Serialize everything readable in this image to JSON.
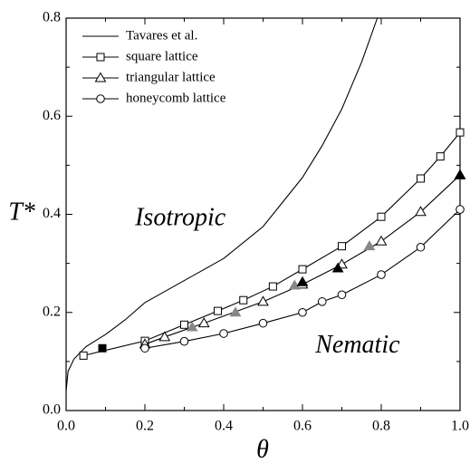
{
  "chart_data": {
    "type": "line",
    "xlabel": "θ",
    "ylabel": "T*",
    "xlim": [
      0,
      1
    ],
    "ylim": [
      0,
      0.8
    ],
    "xticks": [
      {
        "value": 0,
        "label": "0.0"
      },
      0.2,
      0.4,
      0.6,
      0.8,
      {
        "value": 1,
        "label": "1.0"
      }
    ],
    "yticks": [
      {
        "value": 0,
        "label": "0.0"
      },
      0.2,
      0.4,
      0.6,
      0.8
    ],
    "legend": "upper left",
    "annotations": [
      {
        "text": "Isotropic",
        "x": 0.29,
        "y": 0.39
      },
      {
        "text": "Nematic",
        "x": 0.74,
        "y": 0.13
      }
    ],
    "series": [
      {
        "name": "Tavares et al.",
        "color": "#000000",
        "marker": "none",
        "x": [
          0,
          0.005,
          0.02,
          0.05,
          0.1,
          0.15,
          0.2,
          0.3,
          0.4,
          0.5,
          0.6,
          0.65,
          0.7,
          0.75,
          0.79
        ],
        "values": [
          0.04,
          0.08,
          0.105,
          0.13,
          0.155,
          0.185,
          0.22,
          0.265,
          0.31,
          0.375,
          0.475,
          0.54,
          0.615,
          0.71,
          0.8
        ]
      },
      {
        "name": "square lattice",
        "color": "#000000",
        "marker": "square",
        "x": [
          0.044,
          0.2,
          0.3,
          0.385,
          0.45,
          0.525,
          0.6,
          0.7,
          0.8,
          0.9,
          0.95,
          1.0
        ],
        "values": [
          0.112,
          0.142,
          0.175,
          0.203,
          0.225,
          0.253,
          0.288,
          0.335,
          0.395,
          0.473,
          0.518,
          0.567
        ]
      },
      {
        "name": "triangular lattice",
        "color": "#000000",
        "marker": "triangle",
        "x": [
          0.2,
          0.25,
          0.35,
          0.5,
          0.6,
          0.7,
          0.8,
          0.9,
          1.0
        ],
        "values": [
          0.135,
          0.15,
          0.178,
          0.222,
          0.257,
          0.298,
          0.345,
          0.405,
          0.48
        ]
      },
      {
        "name": "honeycomb lattice",
        "color": "#000000",
        "marker": "circle",
        "x": [
          0.2,
          0.3,
          0.4,
          0.5,
          0.6,
          0.65,
          0.7,
          0.8,
          0.9,
          1.0
        ],
        "values": [
          0.127,
          0.141,
          0.157,
          0.178,
          0.2,
          0.222,
          0.236,
          0.277,
          0.333,
          0.41
        ]
      },
      {
        "color": "#000000",
        "marker": "square",
        "filled": true,
        "line": false,
        "x": [
          0.092
        ],
        "values": [
          0.127
        ]
      },
      {
        "color": "#888888",
        "marker": "triangle",
        "filled": true,
        "line": false,
        "x": [
          0.32,
          0.43,
          0.58,
          0.77
        ],
        "values": [
          0.17,
          0.2,
          0.255,
          0.335
        ]
      },
      {
        "color": "#000000",
        "marker": "triangle",
        "filled": true,
        "line": false,
        "x": [
          0.6,
          0.69,
          1.0
        ],
        "values": [
          0.262,
          0.29,
          0.48
        ]
      }
    ]
  }
}
